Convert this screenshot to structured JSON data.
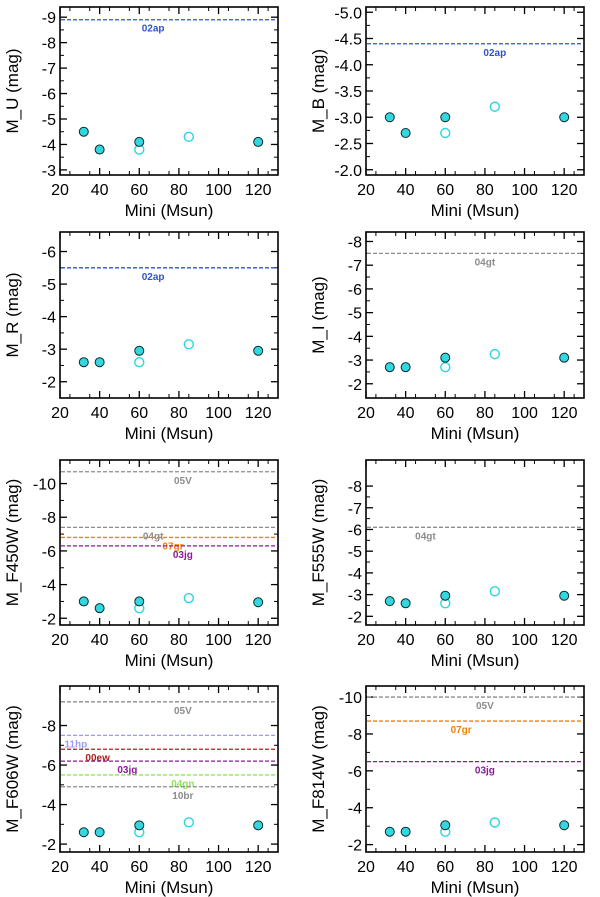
{
  "chart_data": [
    {
      "type": "scatter",
      "title": "",
      "xlabel": "Mini (Msun)",
      "ylabel": "M_U (mag)",
      "xlim": [
        20,
        130
      ],
      "ylim": [
        -2.8,
        -9.4
      ],
      "xticks": [
        20,
        40,
        60,
        80,
        100,
        120
      ],
      "xtick_labels": [
        "20",
        "40",
        "60",
        "80",
        "100",
        "120"
      ],
      "yticks": [
        -3,
        -4,
        -5,
        -6,
        -7,
        -8,
        -9
      ],
      "ytick_labels": [
        "-3",
        "-4",
        "-5",
        "-6",
        "-7",
        "-8",
        "-9"
      ],
      "filled": {
        "name": "filled circles",
        "x": [
          32,
          40,
          60,
          120
        ],
        "y": [
          -4.5,
          -3.8,
          -4.1,
          -4.1
        ]
      },
      "open": {
        "name": "open circles",
        "x": [
          60,
          85
        ],
        "y": [
          -3.8,
          -4.3
        ]
      },
      "reference_lines": [
        {
          "label": "02ap",
          "value": -8.9,
          "color": "#2f52c8",
          "label_x": 67
        }
      ]
    },
    {
      "type": "scatter",
      "title": "",
      "xlabel": "Mini (Msun)",
      "ylabel": "M_B (mag)",
      "xlim": [
        20,
        130
      ],
      "ylim": [
        -1.9,
        -5.1
      ],
      "xticks": [
        20,
        40,
        60,
        80,
        100,
        120
      ],
      "xtick_labels": [
        "20",
        "40",
        "60",
        "80",
        "100",
        "120"
      ],
      "yticks": [
        -2,
        -2.5,
        -3,
        -3.5,
        -4,
        -4.5,
        -5
      ],
      "ytick_labels": [
        "-2.0",
        "-2.5",
        "-3.0",
        "-3.5",
        "-4.0",
        "-4.5",
        "-5.0"
      ],
      "filled": {
        "name": "filled circles",
        "x": [
          32,
          40,
          60,
          120
        ],
        "y": [
          -3.0,
          -2.7,
          -3.0,
          -3.0
        ]
      },
      "open": {
        "name": "open circles",
        "x": [
          60,
          85
        ],
        "y": [
          -2.7,
          -3.2
        ]
      },
      "reference_lines": [
        {
          "label": "02ap",
          "value": -4.4,
          "color": "#2f52c8",
          "label_x": 85
        }
      ]
    },
    {
      "type": "scatter",
      "title": "",
      "xlabel": "Mini (Msun)",
      "ylabel": "M_R (mag)",
      "xlim": [
        20,
        130
      ],
      "ylim": [
        -1.5,
        -6.6
      ],
      "xticks": [
        20,
        40,
        60,
        80,
        100,
        120
      ],
      "xtick_labels": [
        "20",
        "40",
        "60",
        "80",
        "100",
        "120"
      ],
      "yticks": [
        -2,
        -3,
        -4,
        -5,
        -6
      ],
      "ytick_labels": [
        "-2",
        "-3",
        "-4",
        "-5",
        "-6"
      ],
      "filled": {
        "name": "filled circles",
        "x": [
          32,
          40,
          60,
          120
        ],
        "y": [
          -2.6,
          -2.6,
          -2.95,
          -2.95
        ]
      },
      "open": {
        "name": "open circles",
        "x": [
          60,
          85
        ],
        "y": [
          -2.6,
          -3.15
        ]
      },
      "reference_lines": [
        {
          "label": "02ap",
          "value": -5.5,
          "color": "#2f52c8",
          "label_x": 67
        }
      ]
    },
    {
      "type": "scatter",
      "title": "",
      "xlabel": "Mini (Msun)",
      "ylabel": "M_I (mag)",
      "xlim": [
        20,
        130
      ],
      "ylim": [
        -1.4,
        -8.4
      ],
      "xticks": [
        20,
        40,
        60,
        80,
        100,
        120
      ],
      "xtick_labels": [
        "20",
        "40",
        "60",
        "80",
        "100",
        "120"
      ],
      "yticks": [
        -2,
        -3,
        -4,
        -5,
        -6,
        -7,
        -8
      ],
      "ytick_labels": [
        "-2",
        "-3",
        "-4",
        "-5",
        "-6",
        "-7",
        "-8"
      ],
      "filled": {
        "name": "filled circles",
        "x": [
          32,
          40,
          60,
          120
        ],
        "y": [
          -2.7,
          -2.7,
          -3.1,
          -3.1
        ]
      },
      "open": {
        "name": "open circles",
        "x": [
          60,
          85
        ],
        "y": [
          -2.7,
          -3.25
        ]
      },
      "reference_lines": [
        {
          "label": "04gt",
          "value": -7.5,
          "color": "#8c8c8c",
          "label_x": 80
        }
      ]
    },
    {
      "type": "scatter",
      "title": "",
      "xlabel": "Mini (Msun)",
      "ylabel": "M_F450W (mag)",
      "xlim": [
        20,
        130
      ],
      "ylim": [
        -1.6,
        -11.4
      ],
      "xticks": [
        20,
        40,
        60,
        80,
        100,
        120
      ],
      "xtick_labels": [
        "20",
        "40",
        "60",
        "80",
        "100",
        "120"
      ],
      "yticks": [
        -2,
        -4,
        -6,
        -8,
        -10
      ],
      "ytick_labels": [
        "-2",
        "-4",
        "-6",
        "-8",
        "-10"
      ],
      "filled": {
        "name": "filled circles",
        "x": [
          32,
          40,
          60,
          120
        ],
        "y": [
          -3.0,
          -2.6,
          -3.0,
          -2.95
        ]
      },
      "open": {
        "name": "open circles",
        "x": [
          60,
          85
        ],
        "y": [
          -2.6,
          -3.2
        ]
      },
      "reference_lines": [
        {
          "label": "05V",
          "value": -10.7,
          "color": "#8c8c8c",
          "label_x": 82
        },
        {
          "label": "04gt",
          "value": -7.4,
          "color": "#8c8c8c",
          "label_x": 67
        },
        {
          "label": "07gr",
          "value": -6.8,
          "color": "#f0820a",
          "label_x": 77
        },
        {
          "label": "03jg",
          "value": -6.3,
          "color": "#8b1a9a",
          "label_x": 82
        }
      ]
    },
    {
      "type": "scatter",
      "title": "",
      "xlabel": "Mini (Msun)",
      "ylabel": "M_F555W (mag)",
      "xlim": [
        20,
        130
      ],
      "ylim": [
        -1.6,
        -9.2
      ],
      "xticks": [
        20,
        40,
        60,
        80,
        100,
        120
      ],
      "xtick_labels": [
        "20",
        "40",
        "60",
        "80",
        "100",
        "120"
      ],
      "yticks": [
        -2,
        -3,
        -4,
        -5,
        -6,
        -7,
        -8
      ],
      "ytick_labels": [
        "-2",
        "-3",
        "-4",
        "-5",
        "-6",
        "-7",
        "-8"
      ],
      "filled": {
        "name": "filled circles",
        "x": [
          32,
          40,
          60,
          120
        ],
        "y": [
          -2.7,
          -2.6,
          -2.95,
          -2.95
        ]
      },
      "open": {
        "name": "open circles",
        "x": [
          60,
          85
        ],
        "y": [
          -2.6,
          -3.15
        ]
      },
      "reference_lines": [
        {
          "label": "04gt",
          "value": -6.1,
          "color": "#8c8c8c",
          "label_x": 50
        }
      ]
    },
    {
      "type": "scatter",
      "title": "",
      "xlabel": "Mini (Msun)",
      "ylabel": "M_F606W (mag)",
      "xlim": [
        20,
        130
      ],
      "ylim": [
        -1.6,
        -10
      ],
      "xticks": [
        20,
        40,
        60,
        80,
        100,
        120
      ],
      "xtick_labels": [
        "20",
        "40",
        "60",
        "80",
        "100",
        "120"
      ],
      "yticks": [
        -2,
        -4,
        -6,
        -8
      ],
      "ytick_labels": [
        "-2",
        "-4",
        "-6",
        "-8"
      ],
      "filled": {
        "name": "filled circles",
        "x": [
          32,
          40,
          60,
          120
        ],
        "y": [
          -2.6,
          -2.6,
          -2.95,
          -2.95
        ]
      },
      "open": {
        "name": "open circles",
        "x": [
          60,
          85
        ],
        "y": [
          -2.6,
          -3.1
        ]
      },
      "reference_lines": [
        {
          "label": "05V",
          "value": -9.2,
          "color": "#8c8c8c",
          "label_x": 82
        },
        {
          "label": "11hp",
          "value": -7.5,
          "color": "#9b9bf0",
          "label_x": 28
        },
        {
          "label": "00ew",
          "value": -6.8,
          "color": "#b01c1c",
          "label_x": 39
        },
        {
          "label": "03jg",
          "value": -6.2,
          "color": "#8b1a9a",
          "label_x": 54
        },
        {
          "label": "04gn",
          "value": -5.5,
          "color": "#8ee55a",
          "label_x": 82
        },
        {
          "label": "10br",
          "value": -4.9,
          "color": "#8c8c8c",
          "label_x": 82
        }
      ]
    },
    {
      "type": "scatter",
      "title": "",
      "xlabel": "Mini (Msun)",
      "ylabel": "M_F814W (mag)",
      "xlim": [
        20,
        130
      ],
      "ylim": [
        -1.6,
        -10.6
      ],
      "xticks": [
        20,
        40,
        60,
        80,
        100,
        120
      ],
      "xtick_labels": [
        "20",
        "40",
        "60",
        "80",
        "100",
        "120"
      ],
      "yticks": [
        -2,
        -4,
        -6,
        -8,
        -10
      ],
      "ytick_labels": [
        "-2",
        "-4",
        "-6",
        "-8",
        "-10"
      ],
      "filled": {
        "name": "filled circles",
        "x": [
          32,
          40,
          60,
          120
        ],
        "y": [
          -2.7,
          -2.7,
          -3.05,
          -3.05
        ]
      },
      "open": {
        "name": "open circles",
        "x": [
          60,
          85
        ],
        "y": [
          -2.7,
          -3.2
        ]
      },
      "reference_lines": [
        {
          "label": "05V",
          "value": -10.0,
          "color": "#8c8c8c",
          "label_x": 80
        },
        {
          "label": "07gr",
          "value": -8.7,
          "color": "#f0820a",
          "label_x": 68
        },
        {
          "label": "03jg",
          "value": -6.5,
          "color": "#8b1a9a",
          "label_x": 80
        }
      ]
    }
  ],
  "colors": {
    "marker_fill": "#33d7df",
    "marker_edge": "#0a2a2e",
    "open_marker_edge": "#2bd6e2",
    "axis": "#000000"
  }
}
